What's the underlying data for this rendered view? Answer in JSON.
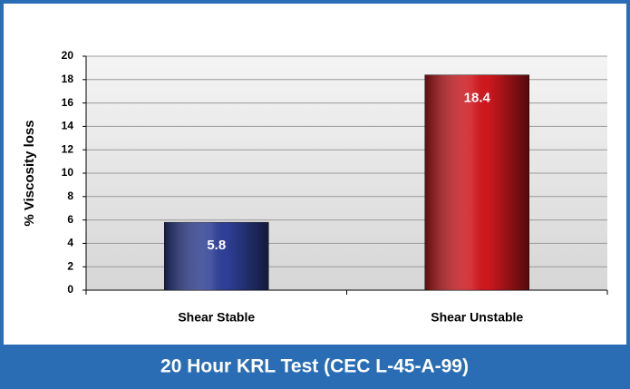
{
  "chart_data": {
    "type": "bar",
    "title": "20 Hour KRL Test (CEC L-45-A-99)",
    "y_label": "% Viscosity loss",
    "categories": [
      "Shear Stable",
      "Shear Unstable"
    ],
    "values": [
      5.8,
      18.4
    ],
    "colors": [
      "#2e3f96",
      "#d0181e"
    ],
    "ylim": [
      0,
      20
    ],
    "yticks": [
      0,
      2,
      4,
      6,
      8,
      10,
      12,
      14,
      16,
      18,
      20
    ],
    "grid": true
  }
}
